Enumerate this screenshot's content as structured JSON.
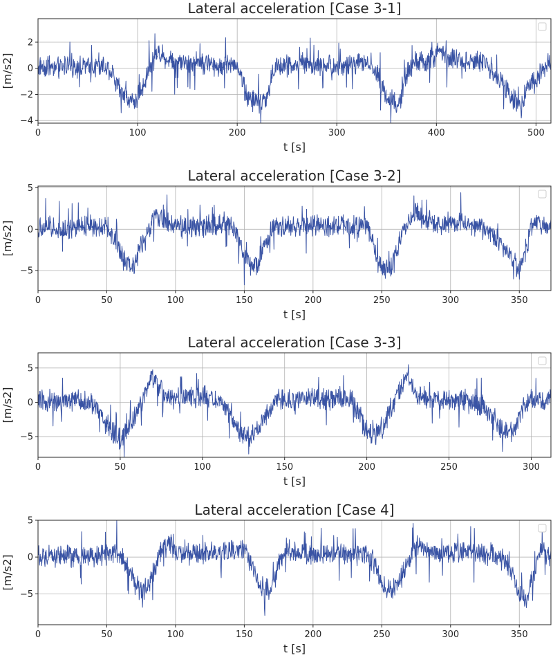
{
  "line_color": "#3953a4",
  "grid_color": "#b0b0b0",
  "chart_data": [
    {
      "type": "line",
      "title": "Lateral acceleration [Case 3-1]",
      "xlabel": "t [s]",
      "ylabel": "[m/s2]",
      "xlim": [
        0,
        515
      ],
      "ylim": [
        -4.2,
        3.8
      ],
      "xticks": [
        0,
        100,
        200,
        300,
        400,
        500
      ],
      "yticks": [
        -4,
        -2,
        0,
        2
      ],
      "grid": true,
      "legend": "top-right (empty)",
      "series": [
        {
          "x": [
            0,
            10,
            20,
            30,
            40,
            50,
            60,
            70,
            75,
            80,
            90,
            100,
            105,
            110,
            120,
            130,
            140,
            150,
            160,
            170,
            180,
            190,
            200,
            205,
            210,
            220,
            230,
            235,
            240,
            250,
            260,
            270,
            280,
            290,
            300,
            310,
            320,
            330,
            340,
            345,
            350,
            360,
            365,
            370,
            380,
            390,
            400,
            410,
            420,
            430,
            440,
            450,
            460,
            470,
            480,
            485,
            490,
            500,
            510,
            515
          ],
          "y": [
            0.1,
            0.2,
            0.0,
            0.3,
            0.1,
            0.2,
            0.0,
            0.1,
            -0.4,
            -1.4,
            -2.4,
            -2.3,
            -1.5,
            -0.2,
            1.3,
            0.7,
            0.5,
            0.4,
            0.5,
            0.3,
            0.2,
            0.3,
            0.4,
            -1.0,
            -2.2,
            -2.6,
            -2.4,
            -0.5,
            0.2,
            0.3,
            0.2,
            0.4,
            0.1,
            0.3,
            0.2,
            0.1,
            0.3,
            0.4,
            -0.3,
            -1.2,
            -2.2,
            -2.8,
            -2.2,
            -0.5,
            0.6,
            0.4,
            1.1,
            0.9,
            0.7,
            0.6,
            0.5,
            0.4,
            -0.6,
            -1.6,
            -2.7,
            -2.6,
            -1.6,
            -0.8,
            0.3,
            0.2
          ]
        }
      ]
    },
    {
      "type": "line",
      "title": "Lateral acceleration [Case 3-2]",
      "xlabel": "t [s]",
      "ylabel": "[m/s2]",
      "xlim": [
        0,
        373
      ],
      "ylim": [
        -7.4,
        5.2
      ],
      "xticks": [
        0,
        50,
        100,
        150,
        200,
        250,
        300,
        350
      ],
      "yticks": [
        -5,
        0,
        5
      ],
      "grid": true,
      "legend": "top-right (empty)",
      "series": [
        {
          "x": [
            0,
            10,
            20,
            30,
            40,
            50,
            55,
            60,
            65,
            70,
            75,
            80,
            85,
            90,
            100,
            110,
            120,
            130,
            140,
            145,
            150,
            155,
            160,
            165,
            170,
            180,
            190,
            200,
            210,
            220,
            230,
            240,
            245,
            250,
            255,
            260,
            265,
            270,
            275,
            280,
            290,
            300,
            310,
            320,
            330,
            340,
            345,
            350,
            355,
            360,
            365,
            373
          ],
          "y": [
            0.2,
            0.4,
            0.0,
            0.3,
            0.5,
            0.4,
            -1.0,
            -3.0,
            -4.5,
            -4.2,
            -2.0,
            -0.5,
            1.8,
            1.0,
            0.3,
            0.5,
            0.4,
            0.6,
            1.0,
            -0.8,
            -3.0,
            -4.5,
            -4.2,
            -2.0,
            0.2,
            0.4,
            0.3,
            0.5,
            0.2,
            0.4,
            0.3,
            0.2,
            -2.5,
            -4.5,
            -4.8,
            -3.0,
            -0.5,
            1.5,
            2.0,
            1.2,
            0.5,
            0.8,
            0.6,
            0.5,
            -0.5,
            -2.5,
            -3.5,
            -4.8,
            -2.5,
            1.0,
            0.5,
            0.3
          ]
        }
      ]
    },
    {
      "type": "line",
      "title": "Lateral acceleration [Case 3-3]",
      "xlabel": "t [s]",
      "ylabel": "[m/s2]",
      "xlim": [
        0,
        312
      ],
      "ylim": [
        -8.0,
        7.2
      ],
      "xticks": [
        0,
        50,
        100,
        150,
        200,
        250,
        300
      ],
      "yticks": [
        -5,
        0,
        5
      ],
      "grid": true,
      "legend": "top-right (empty)",
      "series": [
        {
          "x": [
            0,
            10,
            20,
            30,
            35,
            40,
            45,
            50,
            55,
            60,
            65,
            70,
            75,
            80,
            90,
            100,
            110,
            115,
            120,
            125,
            130,
            135,
            140,
            145,
            150,
            160,
            170,
            180,
            190,
            195,
            200,
            205,
            210,
            215,
            220,
            225,
            230,
            240,
            250,
            260,
            270,
            275,
            280,
            285,
            290,
            295,
            300,
            312
          ],
          "y": [
            0.2,
            0.0,
            0.4,
            0.0,
            -0.5,
            -2.5,
            -4.5,
            -5.2,
            -4.0,
            -1.5,
            1.0,
            3.8,
            1.5,
            0.4,
            0.6,
            1.0,
            0.2,
            -1.0,
            -3.0,
            -4.8,
            -5.0,
            -3.2,
            -1.5,
            0.5,
            0.3,
            0.5,
            0.6,
            0.4,
            0.8,
            -1.5,
            -4.0,
            -4.5,
            -3.5,
            -1.0,
            2.0,
            4.2,
            1.0,
            0.5,
            0.2,
            0.4,
            -0.5,
            -1.5,
            -3.2,
            -4.5,
            -4.0,
            -1.0,
            0.4,
            0.2
          ]
        }
      ]
    },
    {
      "type": "line",
      "title": "Lateral acceleration [Case 4]",
      "xlabel": "t [s]",
      "ylabel": "[m/s2]",
      "xlim": [
        0,
        373
      ],
      "ylim": [
        -9.2,
        5.0
      ],
      "xticks": [
        0,
        50,
        100,
        150,
        200,
        250,
        300,
        350
      ],
      "yticks": [
        -5,
        0,
        5
      ],
      "grid": true,
      "legend": "top-right (empty)",
      "series": [
        {
          "x": [
            0,
            10,
            20,
            30,
            40,
            50,
            55,
            60,
            65,
            70,
            75,
            80,
            85,
            90,
            95,
            100,
            110,
            120,
            130,
            140,
            150,
            155,
            160,
            165,
            170,
            175,
            180,
            190,
            200,
            210,
            220,
            230,
            240,
            245,
            250,
            255,
            260,
            265,
            270,
            275,
            280,
            290,
            300,
            310,
            320,
            330,
            340,
            345,
            350,
            355,
            360,
            365,
            373
          ],
          "y": [
            0.2,
            0.0,
            0.3,
            0.1,
            0.2,
            0.4,
            0.3,
            0.5,
            -1.5,
            -3.5,
            -4.5,
            -4.0,
            -1.5,
            1.0,
            1.8,
            0.8,
            0.4,
            0.6,
            0.5,
            0.8,
            1.0,
            -1.0,
            -3.5,
            -4.5,
            -4.2,
            -1.0,
            1.2,
            0.4,
            0.2,
            0.5,
            0.3,
            0.4,
            0.2,
            -1.0,
            -3.5,
            -4.5,
            -4.0,
            -2.5,
            -0.5,
            1.5,
            1.2,
            0.5,
            0.3,
            0.8,
            0.6,
            0.4,
            -0.5,
            -2.5,
            -4.8,
            -5.5,
            -2.5,
            1.0,
            0.2
          ]
        }
      ]
    }
  ]
}
